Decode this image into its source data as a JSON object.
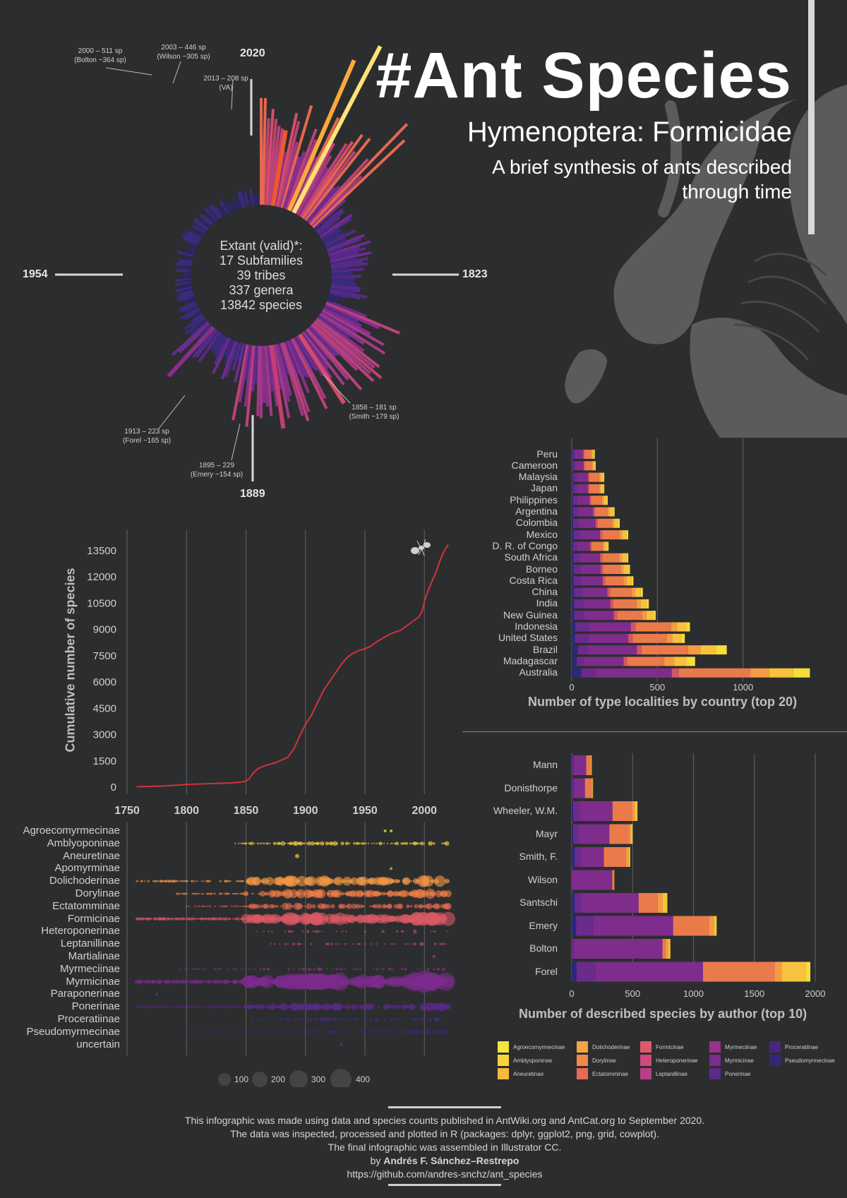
{
  "header": {
    "title": "#Ant Species",
    "subtitle": "Hymenoptera: Formicidae",
    "description_line1": "A brief synthesis of ants described",
    "description_line2": "through time"
  },
  "radial": {
    "center_lines": [
      "Extant (valid)*:",
      "17 Subfamilies",
      "39 tribes",
      "337 genera",
      "13842 species"
    ],
    "year_markers": {
      "top": "2020",
      "right": "1823",
      "bottom": "1889",
      "left": "1954"
    },
    "annotations": [
      {
        "l1": "2000 – 511 sp",
        "l2": "(Bolton ~364 sp)"
      },
      {
        "l1": "2003 – 446 sp",
        "l2": "(Wilson ~305 sp)"
      },
      {
        "l1": "2013 – 208 sp",
        "l2": "(VA)"
      },
      {
        "l1": "1858 – 181 sp",
        "l2": "(Smith ~179 sp)"
      },
      {
        "l1": "1895 – 229",
        "l2": "(Emery ~154 sp)"
      },
      {
        "l1": "1913 – 223 sp",
        "l2": "(Forel ~165 sp)"
      }
    ],
    "highlight": [
      {
        "year": 2000,
        "count": 511,
        "color": "#fde37a"
      },
      {
        "year": 2003,
        "count": 446,
        "color": "#fba93d"
      },
      {
        "year": 2013,
        "count": 208,
        "color": "#f0582c"
      },
      {
        "year": 1858,
        "count": 181,
        "color": "#8a2e8a"
      },
      {
        "year": 1895,
        "count": 229,
        "color": "#c83c75"
      },
      {
        "year": 1913,
        "count": 223,
        "color": "#d44a6b"
      }
    ]
  },
  "chart_data": [
    {
      "type": "line",
      "ylabel": "Cumulative number of species",
      "xlabel": "",
      "xlim": [
        1750,
        2020
      ],
      "ylim": [
        0,
        13842
      ],
      "yticks": [
        0,
        1500,
        3000,
        4500,
        6000,
        7500,
        9000,
        10500,
        12000,
        13500
      ],
      "xticks": [
        1750,
        1800,
        1850,
        1900,
        1950,
        2000
      ],
      "color": "#d0343a",
      "x": [
        1758,
        1780,
        1800,
        1820,
        1835,
        1845,
        1850,
        1853,
        1856,
        1860,
        1865,
        1870,
        1875,
        1880,
        1885,
        1890,
        1895,
        1900,
        1905,
        1910,
        1915,
        1920,
        1925,
        1930,
        1935,
        1940,
        1945,
        1950,
        1955,
        1960,
        1965,
        1970,
        1975,
        1980,
        1985,
        1990,
        1995,
        1998,
        2000,
        2003,
        2006,
        2010,
        2013,
        2016,
        2020
      ],
      "y": [
        20,
        60,
        150,
        200,
        230,
        280,
        340,
        500,
        800,
        1050,
        1200,
        1300,
        1400,
        1550,
        1700,
        2150,
        2900,
        3600,
        4100,
        4800,
        5500,
        6000,
        6500,
        7000,
        7400,
        7650,
        7800,
        7900,
        8050,
        8300,
        8500,
        8700,
        8850,
        8950,
        9200,
        9450,
        9700,
        10000,
        10600,
        11200,
        11700,
        12300,
        12900,
        13400,
        13842
      ]
    },
    {
      "type": "scatter",
      "title": "",
      "xlim": [
        1750,
        2020
      ],
      "size_legend": [
        100,
        200,
        300,
        400
      ],
      "categories": [
        "Agroecomyrmecinae",
        "Amblyoponinae",
        "Aneuretinae",
        "Apomyrminae",
        "Dolichoderinae",
        "Dorylinae",
        "Ectatomminae",
        "Formicinae",
        "Heteroponerinae",
        "Leptanillinae",
        "Martialinae",
        "Myrmeciinae",
        "Myrmicinae",
        "Paraponerinae",
        "Ponerinae",
        "Proceratiinae",
        "Pseudomyrmecinae",
        "uncertain"
      ],
      "series": [
        {
          "category": "Agroecomyrmecinae",
          "color": "#f3e63a",
          "points": [
            [
              1967,
              2
            ],
            [
              1972,
              2
            ]
          ]
        },
        {
          "category": "Amblyoponinae",
          "color": "#f5d13a",
          "range": [
            1840,
            2020
          ],
          "density": 0.5,
          "max": 8
        },
        {
          "category": "Aneuretinae",
          "color": "#f7b93a",
          "points": [
            [
              1893,
              3
            ]
          ]
        },
        {
          "category": "Apomyrminae",
          "color": "#f5a442",
          "points": [
            [
              1972,
              2
            ]
          ]
        },
        {
          "category": "Dolichoderinae",
          "color": "#f59745",
          "range": [
            1758,
            2020
          ],
          "density": 0.6,
          "max": 20
        },
        {
          "category": "Dorylinae",
          "color": "#f07d45",
          "range": [
            1790,
            2020
          ],
          "density": 0.7,
          "max": 16
        },
        {
          "category": "Ectatomminae",
          "color": "#e4684e",
          "range": [
            1800,
            2020
          ],
          "density": 0.6,
          "max": 12
        },
        {
          "category": "Formicinae",
          "color": "#db5864",
          "range": [
            1758,
            2020
          ],
          "density": 0.9,
          "max": 22
        },
        {
          "category": "Heteroponerinae",
          "color": "#cc4a78",
          "range": [
            1855,
            2020
          ],
          "density": 0.25,
          "max": 6
        },
        {
          "category": "Leptanillinae",
          "color": "#bf3e85",
          "range": [
            1870,
            2020
          ],
          "density": 0.3,
          "max": 6
        },
        {
          "category": "Martialinae",
          "color": "#a63a8a",
          "points": [
            [
              2008,
              2
            ]
          ]
        },
        {
          "category": "Myrmeciinae",
          "color": "#8f318c",
          "range": [
            1790,
            2020
          ],
          "density": 0.3,
          "max": 6
        },
        {
          "category": "Myrmicinae",
          "color": "#7b2c8c",
          "range": [
            1758,
            2020
          ],
          "density": 0.95,
          "max": 30
        },
        {
          "category": "Paraponerinae",
          "color": "#6a2a8a",
          "points": [
            [
              1775,
              2
            ]
          ]
        },
        {
          "category": "Ponerinae",
          "color": "#5a2a86",
          "range": [
            1758,
            2020
          ],
          "density": 0.8,
          "max": 14
        },
        {
          "category": "Proceratiinae",
          "color": "#46297e",
          "range": [
            1855,
            2020
          ],
          "density": 0.4,
          "max": 8
        },
        {
          "category": "Pseudomyrmecinae",
          "color": "#3a2877",
          "range": [
            1800,
            2020
          ],
          "density": 0.5,
          "max": 8
        },
        {
          "category": "uncertain",
          "color": "#4a4a55",
          "points": [
            [
              1930,
              2
            ]
          ]
        }
      ]
    },
    {
      "type": "bar",
      "orientation": "horizontal",
      "stacked": true,
      "xlabel": "Number of type localities by country (top 20)",
      "xlim": [
        0,
        1450
      ],
      "xticks": [
        0,
        500,
        1000
      ],
      "categories": [
        "Peru",
        "Cameroon",
        "Malaysia",
        "Japan",
        "Philippines",
        "Argentina",
        "Colombia",
        "Mexico",
        "D. R. of Congo",
        "South Africa",
        "Borneo",
        "Costa Rica",
        "China",
        "India",
        "New Guinea",
        "Indonesia",
        "United States",
        "Brazil",
        "Madagascar",
        "Australia"
      ],
      "totals": [
        135,
        140,
        190,
        190,
        210,
        250,
        280,
        330,
        215,
        330,
        340,
        360,
        415,
        450,
        490,
        690,
        660,
        905,
        720,
        1390
      ]
    },
    {
      "type": "bar",
      "orientation": "horizontal",
      "stacked": true,
      "xlabel": "Number of described species by author (top 10)",
      "xlim": [
        0,
        2000
      ],
      "xticks": [
        0,
        500,
        1000,
        1500,
        2000
      ],
      "categories": [
        "Mann",
        "Donisthorpe",
        "Wheeler, W.M.",
        "Mayr",
        "Smith, F.",
        "Wilson",
        "Santschi",
        "Emery",
        "Bolton",
        "Forel"
      ],
      "totals": [
        165,
        175,
        540,
        500,
        480,
        350,
        785,
        1190,
        810,
        1960
      ]
    }
  ],
  "legend": {
    "items": [
      {
        "name": "Agroecomyrmecinae",
        "color": "#f3e63a"
      },
      {
        "name": "Amblyoponinae",
        "color": "#f7d53a"
      },
      {
        "name": "Aneuretinae",
        "color": "#f8b83a"
      },
      {
        "name": "Dolichoderinae",
        "color": "#f5a442"
      },
      {
        "name": "Dorylinae",
        "color": "#f08a48"
      },
      {
        "name": "Ectatomminae",
        "color": "#e86a55"
      },
      {
        "name": "Formicinae",
        "color": "#de5a68"
      },
      {
        "name": "Heteroponerinae",
        "color": "#cd4a7a"
      },
      {
        "name": "Leptanillinae",
        "color": "#bb3e88"
      },
      {
        "name": "Myrmeciinae",
        "color": "#96338c"
      },
      {
        "name": "Myrmicinae",
        "color": "#7b2c8c"
      },
      {
        "name": "Ponerinae",
        "color": "#5d2a88"
      },
      {
        "name": "Proceratiinae",
        "color": "#45287e"
      },
      {
        "name": "Pseudomyrmecinae",
        "color": "#332877"
      }
    ]
  },
  "footer": {
    "line1": "This infographic was made using data and species counts published in AntWiki.org and AntCat.org to September 2020.",
    "line2": "The data was inspected, processed and plotted in R (packages: dplyr, ggplot2, png, grid, cowplot).",
    "line3": "The final infographic was assembled in Illustrator CC.",
    "by_prefix": "by ",
    "author": "Andrés F. Sánchez–Restrepo",
    "link": "https://github.com/andres-snchz/ant_species"
  }
}
